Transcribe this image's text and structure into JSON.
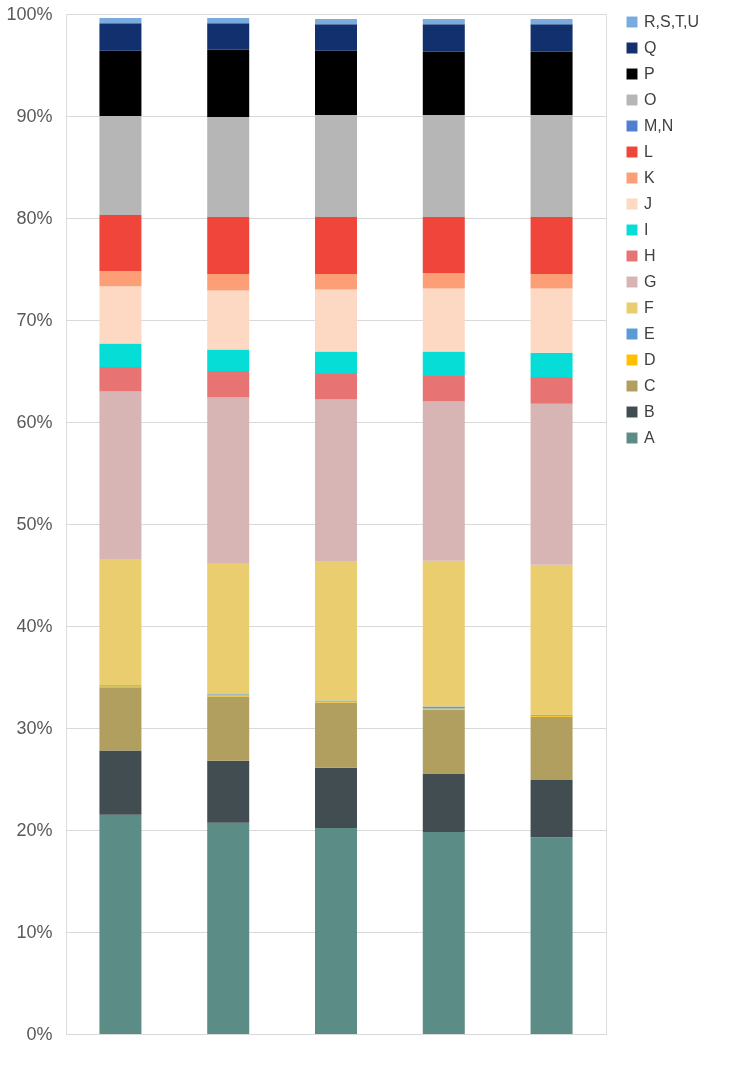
{
  "chart_data": {
    "type": "bar",
    "stacked": true,
    "categories": [
      null,
      null,
      null,
      null,
      null
    ],
    "ylim": [
      0,
      100
    ],
    "yticks": [
      {
        "value": 0,
        "label": "0%"
      },
      {
        "value": 10,
        "label": "10%"
      },
      {
        "value": 20,
        "label": "20%"
      },
      {
        "value": 30,
        "label": "30%"
      },
      {
        "value": 40,
        "label": "40%"
      },
      {
        "value": 50,
        "label": "50%"
      },
      {
        "value": 60,
        "label": "60%"
      },
      {
        "value": 70,
        "label": "70%"
      },
      {
        "value": 80,
        "label": "80%"
      },
      {
        "value": 90,
        "label": "90%"
      },
      {
        "value": 100,
        "label": "100%"
      }
    ],
    "grid": "y",
    "legend": "right",
    "tick_labels": "y",
    "series": [
      {
        "name": "A",
        "color": "#5b8c85",
        "values": [
          21.5,
          20.7,
          20.2,
          19.8,
          19.3
        ]
      },
      {
        "name": "B",
        "color": "#424d52",
        "values": [
          6.3,
          6.1,
          5.9,
          5.7,
          5.6
        ]
      },
      {
        "name": "C",
        "color": "#b09f5e",
        "values": [
          6.2,
          6.3,
          6.4,
          6.3,
          6.2
        ]
      },
      {
        "name": "D",
        "color": "#ffc000",
        "values": [
          0.1,
          0.1,
          0.1,
          0.1,
          0.1
        ]
      },
      {
        "name": "E",
        "color": "#5b9bd5",
        "values": [
          0.1,
          0.1,
          0.1,
          0.2,
          0.1
        ]
      },
      {
        "name": "F",
        "color": "#eacd6e",
        "values": [
          12.3,
          12.8,
          13.6,
          14.3,
          14.7
        ]
      },
      {
        "name": "G",
        "color": "#d7b5b5",
        "values": [
          16.5,
          16.3,
          15.9,
          15.6,
          15.8
        ]
      },
      {
        "name": "H",
        "color": "#e87373",
        "values": [
          2.4,
          2.6,
          2.5,
          2.5,
          2.6
        ]
      },
      {
        "name": "I",
        "color": "#05ddd6",
        "values": [
          2.3,
          2.1,
          2.2,
          2.4,
          2.4
        ]
      },
      {
        "name": "J",
        "color": "#fdd9c4",
        "values": [
          5.6,
          5.8,
          6.1,
          6.2,
          6.3
        ]
      },
      {
        "name": "K",
        "color": "#fc9e76",
        "values": [
          1.5,
          1.6,
          1.5,
          1.5,
          1.4
        ]
      },
      {
        "name": "L",
        "color": "#ef453a",
        "values": [
          5.5,
          5.6,
          5.6,
          5.5,
          5.6
        ]
      },
      {
        "name": "M,N",
        "color": "#4f7fd0",
        "values": [
          0,
          0,
          0,
          0,
          0
        ]
      },
      {
        "name": "O",
        "color": "#b6b6b6",
        "values": [
          9.7,
          9.8,
          10.0,
          10.0,
          10.0
        ]
      },
      {
        "name": "P",
        "color": "#000000",
        "values": [
          6.4,
          6.6,
          6.3,
          6.2,
          6.2
        ]
      },
      {
        "name": "Q",
        "color": "#11306d",
        "values": [
          2.7,
          2.6,
          2.6,
          2.7,
          2.7
        ]
      },
      {
        "name": "R,S,T,U",
        "color": "#7aabdf",
        "values": [
          0.5,
          0.5,
          0.5,
          0.5,
          0.5
        ]
      }
    ]
  }
}
